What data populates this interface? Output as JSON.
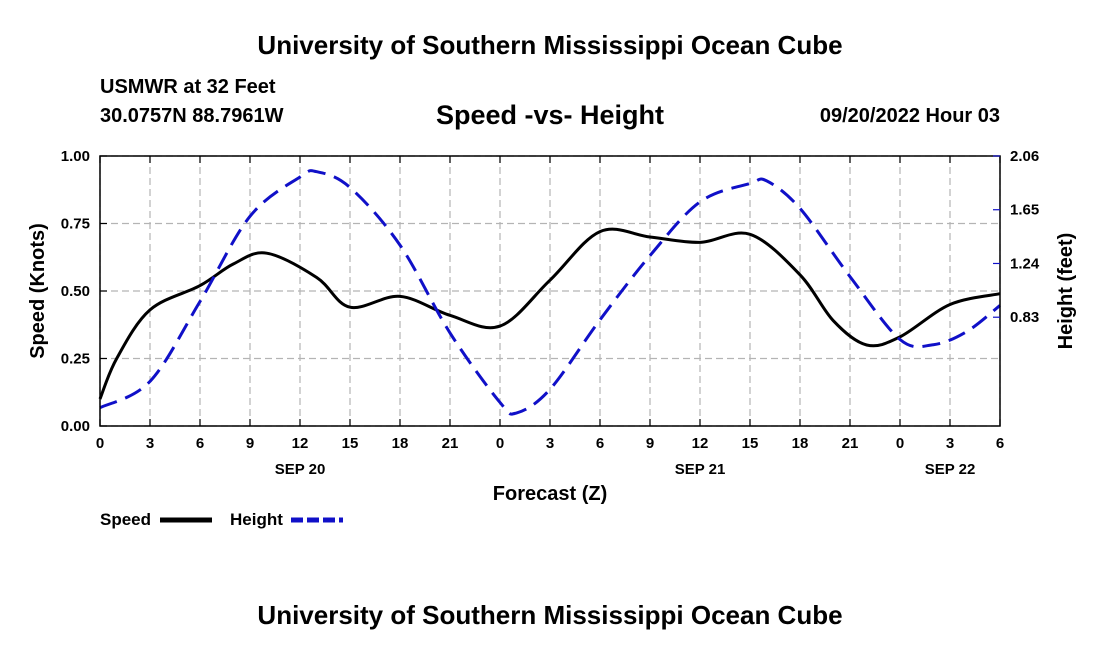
{
  "page": {
    "main_title": "University of Southern Mississippi Ocean Cube",
    "footer_title": "University of Southern Mississippi Ocean Cube"
  },
  "chart_data": {
    "type": "line",
    "station_name": "USMWR at 32 Feet",
    "coordinates": "30.0757N  88.7961W",
    "title": "Speed -vs- Height",
    "time_label": "09/20/2022 Hour 03",
    "xlabel": "Forecast (Z)",
    "ylabel": "Speed (Knots)",
    "ylabel_right": "Height (feet)",
    "x_range_hours": [
      0,
      54
    ],
    "x_ticks": [
      {
        "hour": 0,
        "label": "0"
      },
      {
        "hour": 3,
        "label": "3"
      },
      {
        "hour": 6,
        "label": "6"
      },
      {
        "hour": 9,
        "label": "9"
      },
      {
        "hour": 12,
        "label": "12"
      },
      {
        "hour": 15,
        "label": "15"
      },
      {
        "hour": 18,
        "label": "18"
      },
      {
        "hour": 21,
        "label": "21"
      },
      {
        "hour": 24,
        "label": "0"
      },
      {
        "hour": 27,
        "label": "3"
      },
      {
        "hour": 30,
        "label": "6"
      },
      {
        "hour": 33,
        "label": "9"
      },
      {
        "hour": 36,
        "label": "12"
      },
      {
        "hour": 39,
        "label": "15"
      },
      {
        "hour": 42,
        "label": "18"
      },
      {
        "hour": 45,
        "label": "21"
      },
      {
        "hour": 48,
        "label": "0"
      },
      {
        "hour": 51,
        "label": "3"
      },
      {
        "hour": 54,
        "label": "6"
      }
    ],
    "date_labels": [
      {
        "hour": 12,
        "label": "SEP 20"
      },
      {
        "hour": 36,
        "label": "SEP 21"
      },
      {
        "hour": 51,
        "label": "SEP 22"
      }
    ],
    "y_left": {
      "min": 0,
      "max": 1,
      "ticks": [
        {
          "v": 0,
          "label": "0.00"
        },
        {
          "v": 0.25,
          "label": "0.25"
        },
        {
          "v": 0.5,
          "label": "0.50"
        },
        {
          "v": 0.75,
          "label": "0.75"
        },
        {
          "v": 1,
          "label": "1.00"
        }
      ]
    },
    "y_right": {
      "min": 0,
      "max": 2.06,
      "ticks": [
        {
          "v": 0.83,
          "label": "0.83"
        },
        {
          "v": 1.24,
          "label": "1.24"
        },
        {
          "v": 1.65,
          "label": "1.65"
        },
        {
          "v": 2.06,
          "label": "2.06"
        }
      ]
    },
    "grid": true,
    "legend_position": "bottom-left",
    "series": [
      {
        "name": "Speed",
        "axis": "left",
        "color": "#000000",
        "style": "solid",
        "x": [
          0,
          1,
          3,
          6,
          8,
          10,
          13,
          15,
          18,
          21,
          24,
          27,
          30,
          33,
          36,
          39,
          42,
          44,
          46,
          48,
          51,
          54
        ],
        "y": [
          0.1,
          0.25,
          0.43,
          0.52,
          0.6,
          0.64,
          0.55,
          0.44,
          0.48,
          0.41,
          0.37,
          0.54,
          0.72,
          0.7,
          0.68,
          0.71,
          0.56,
          0.39,
          0.3,
          0.33,
          0.45,
          0.49
        ]
      },
      {
        "name": "Height",
        "axis": "right",
        "color": "#1010c8",
        "style": "dashed",
        "x": [
          0,
          3,
          6,
          9,
          12,
          13,
          15,
          18,
          21,
          24,
          25,
          27,
          30,
          33,
          36,
          39,
          40,
          42,
          45,
          48,
          50,
          52,
          54
        ],
        "y": [
          0.14,
          0.34,
          0.95,
          1.6,
          1.9,
          1.94,
          1.82,
          1.38,
          0.71,
          0.18,
          0.1,
          0.28,
          0.81,
          1.3,
          1.71,
          1.85,
          1.87,
          1.66,
          1.14,
          0.66,
          0.62,
          0.72,
          0.92
        ]
      }
    ]
  }
}
